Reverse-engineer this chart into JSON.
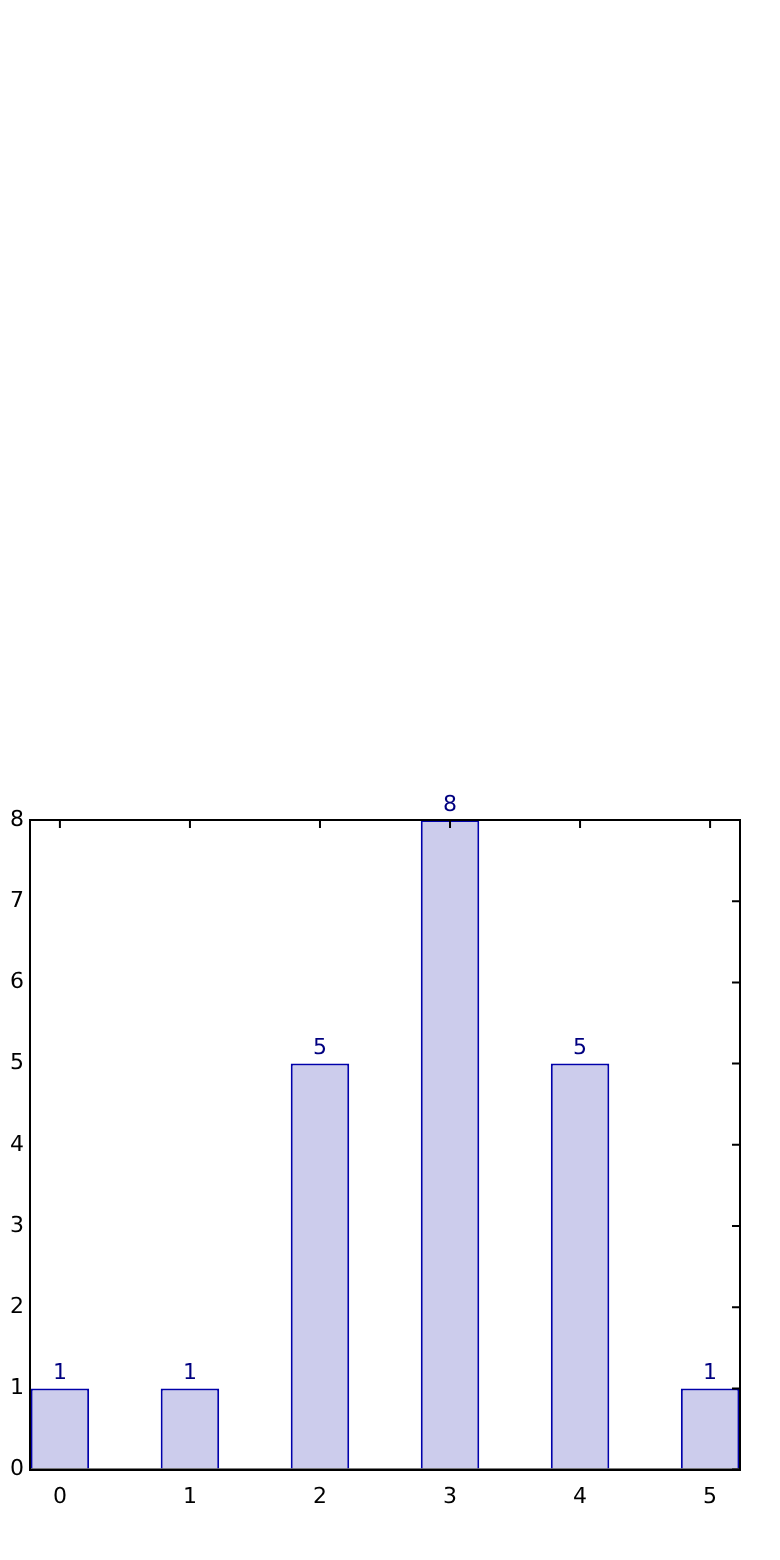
{
  "chart_data": {
    "type": "bar",
    "x": [
      0,
      1,
      2,
      3,
      4,
      5
    ],
    "values": [
      1,
      1,
      5,
      8,
      5,
      1
    ],
    "color": "#ccccec",
    "xlim": [
      -0.23,
      5.23
    ],
    "xticks": [
      0,
      1,
      2,
      3,
      4,
      5
    ],
    "ylim": [
      0,
      8
    ],
    "yticks": [
      0,
      1,
      2,
      3,
      4,
      5,
      6,
      7,
      8
    ],
    "data_labels": true,
    "grid": false,
    "legend": false
  }
}
